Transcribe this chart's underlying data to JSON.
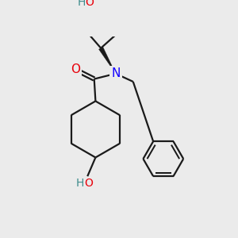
{
  "bg_color": "#ebebeb",
  "bond_color": "#1a1a1a",
  "bond_width": 1.6,
  "atom_colors": {
    "O": "#e8000a",
    "N": "#1200ff",
    "H_teal": "#3d8c8c",
    "C": "#1a1a1a"
  },
  "font_size_atom": 10,
  "fig_size": [
    3.0,
    3.0
  ],
  "dpi": 100
}
